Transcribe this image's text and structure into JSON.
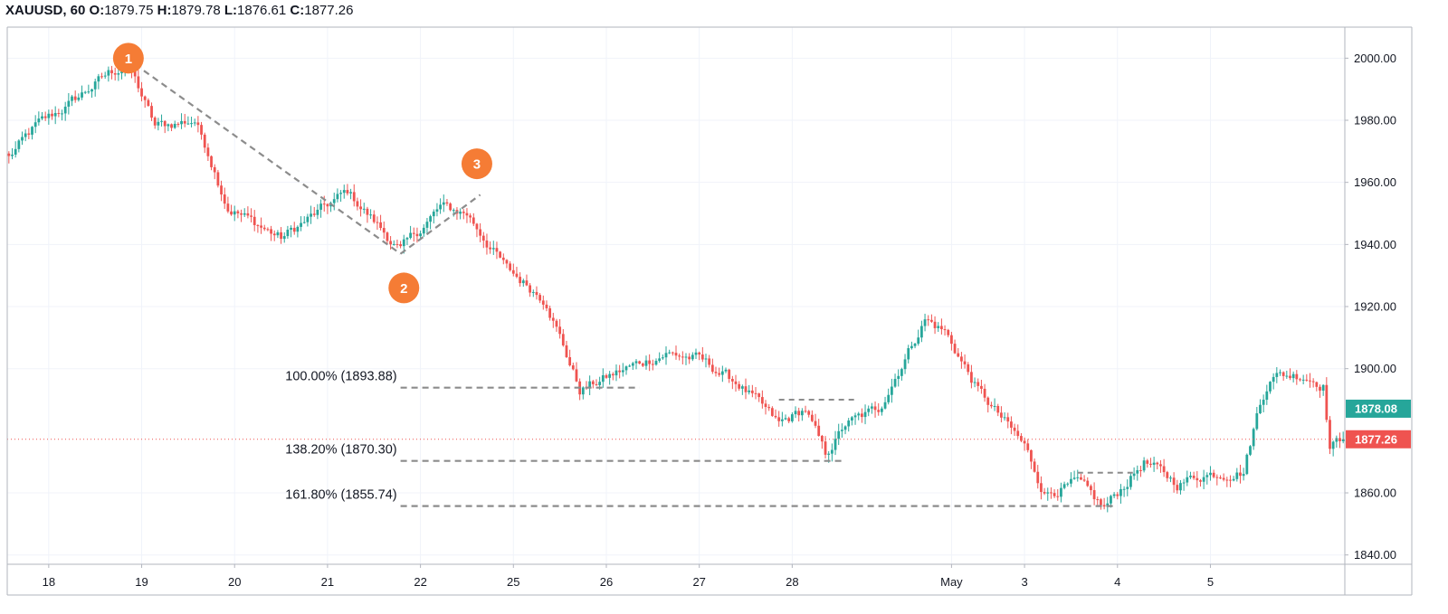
{
  "header": {
    "symbol": "XAUUSD, 60",
    "o_label": "O:",
    "o_value": "1879.75",
    "h_label": "H:",
    "h_value": "1879.78",
    "l_label": "L:",
    "l_value": "1876.61",
    "c_label": "C:",
    "c_value": "1877.26"
  },
  "colors": {
    "up": "#26a69a",
    "down": "#ef5350",
    "grid": "#f0f3fa",
    "axis": "#b2b5be",
    "fib": "#8c8c8c",
    "marker": "#f57c35",
    "last_price": "#ef5350",
    "prev_price_tag": "#26a69a"
  },
  "chart_data": {
    "type": "candlestick",
    "y_axis": {
      "min": 1837,
      "max": 2010,
      "ticks": [
        "2000.00",
        "1980.00",
        "1960.00",
        "1940.00",
        "1920.00",
        "1900.00",
        "1860.00",
        "1840.00"
      ],
      "tick_values": [
        2000,
        1980,
        1960,
        1940,
        1920,
        1900,
        1860,
        1840
      ],
      "position": "right"
    },
    "x_axis": {
      "labels": [
        "18",
        "19",
        "20",
        "21",
        "22",
        "25",
        "26",
        "27",
        "28",
        "May",
        "3",
        "4",
        "5"
      ],
      "label_bar_index": [
        12,
        40,
        68,
        96,
        124,
        152,
        180,
        208,
        236,
        284,
        306,
        334,
        362
      ]
    },
    "grid": true,
    "price_tags": [
      {
        "value": 1878.08,
        "text": "1878.08",
        "kind": "up"
      },
      {
        "value": 1877.26,
        "text": "1877.26",
        "kind": "down"
      }
    ],
    "last_price_line": 1877.26,
    "anchors": [
      {
        "time": 0,
        "price": 1968
      },
      {
        "time": 8,
        "price": 1978
      },
      {
        "time": 18,
        "price": 1985
      },
      {
        "time": 30,
        "price": 1995
      },
      {
        "time": 36,
        "price": 1998
      },
      {
        "time": 44,
        "price": 1978
      },
      {
        "time": 56,
        "price": 1980
      },
      {
        "time": 60,
        "price": 1970
      },
      {
        "time": 66,
        "price": 1952
      },
      {
        "time": 82,
        "price": 1942
      },
      {
        "time": 102,
        "price": 1957
      },
      {
        "time": 118,
        "price": 1938
      },
      {
        "time": 130,
        "price": 1952
      },
      {
        "time": 138,
        "price": 1950
      },
      {
        "time": 150,
        "price": 1932
      },
      {
        "time": 162,
        "price": 1922
      },
      {
        "time": 172,
        "price": 1893
      },
      {
        "time": 186,
        "price": 1900
      },
      {
        "time": 198,
        "price": 1905
      },
      {
        "time": 208,
        "price": 1903
      },
      {
        "time": 220,
        "price": 1895
      },
      {
        "time": 232,
        "price": 1882
      },
      {
        "time": 240,
        "price": 1887
      },
      {
        "time": 246,
        "price": 1872
      },
      {
        "time": 252,
        "price": 1882
      },
      {
        "time": 262,
        "price": 1887
      },
      {
        "time": 276,
        "price": 1916
      },
      {
        "time": 282,
        "price": 1912
      },
      {
        "time": 292,
        "price": 1893
      },
      {
        "time": 306,
        "price": 1875
      },
      {
        "time": 312,
        "price": 1860
      },
      {
        "time": 322,
        "price": 1863
      },
      {
        "time": 330,
        "price": 1855
      },
      {
        "time": 342,
        "price": 1870
      },
      {
        "time": 352,
        "price": 1863
      },
      {
        "time": 360,
        "price": 1866
      },
      {
        "time": 372,
        "price": 1867
      },
      {
        "time": 376,
        "price": 1885
      },
      {
        "time": 380,
        "price": 1898
      },
      {
        "time": 390,
        "price": 1898
      },
      {
        "time": 396,
        "price": 1895
      },
      {
        "time": 398,
        "price": 1875
      },
      {
        "time": 402,
        "price": 1877.26
      }
    ],
    "markers": [
      {
        "label": "1",
        "time": 36,
        "price": 2000
      },
      {
        "label": "2",
        "time": 119,
        "price": 1926
      },
      {
        "label": "3",
        "time": 141,
        "price": 1966
      }
    ],
    "trend_lines": [
      {
        "from": {
          "time": 38,
          "price": 1998
        },
        "to": {
          "time": 118,
          "price": 1937
        }
      },
      {
        "from": {
          "time": 118,
          "price": 1937
        },
        "to": {
          "time": 142,
          "price": 1956
        }
      }
    ],
    "fib_levels": [
      {
        "label": "100.00% (1893.88)",
        "price": 1893.88,
        "from_time": 118,
        "to_time": 190
      },
      {
        "label": "138.20% (1870.30)",
        "price": 1870.3,
        "from_time": 118,
        "to_time": 251
      },
      {
        "label": "161.80% (1855.74)",
        "price": 1855.74,
        "from_time": 118,
        "to_time": 333
      }
    ],
    "extra_dashed": [
      {
        "price": 1890,
        "from_time": 232,
        "to_time": 256
      },
      {
        "price": 1866.5,
        "from_time": 322,
        "to_time": 340
      }
    ]
  }
}
